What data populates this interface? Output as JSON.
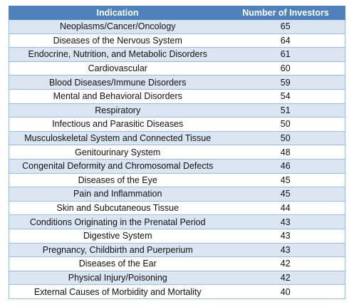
{
  "chart_data": {
    "type": "table",
    "columns": [
      "Indication",
      "Number of Investors"
    ],
    "rows": [
      [
        "Neoplasms/Cancer/Oncology",
        65
      ],
      [
        "Diseases of the Nervous System",
        64
      ],
      [
        "Endocrine, Nutrition, and Metabolic Disorders",
        61
      ],
      [
        "Cardiovascular",
        60
      ],
      [
        "Blood Diseases/Immune Disorders",
        59
      ],
      [
        "Mental and Behavioral Disorders",
        54
      ],
      [
        "Respiratory",
        51
      ],
      [
        "Infectious and Parasitic Diseases",
        50
      ],
      [
        "Musculoskeletal System and Connected Tissue",
        50
      ],
      [
        "Genitourinary System",
        48
      ],
      [
        "Congenital Deformity and Chromosomal Defects",
        46
      ],
      [
        "Diseases of the Eye",
        45
      ],
      [
        "Pain and Inflammation",
        45
      ],
      [
        "Skin and Subcutaneous Tissue",
        44
      ],
      [
        "Conditions Originating in the Prenatal Period",
        43
      ],
      [
        "Digestive System",
        43
      ],
      [
        "Pregnancy, Childbirth and Puerperium",
        43
      ],
      [
        "Diseases of the Ear",
        42
      ],
      [
        "Physical Injury/Poisoning",
        42
      ],
      [
        "External Causes of Morbidity and Mortality",
        40
      ]
    ]
  },
  "colors": {
    "header_bg": "#4f81bd",
    "header_text": "#ffffff",
    "band_bg": "#dbe5f1",
    "border": "#9bbbe0"
  }
}
